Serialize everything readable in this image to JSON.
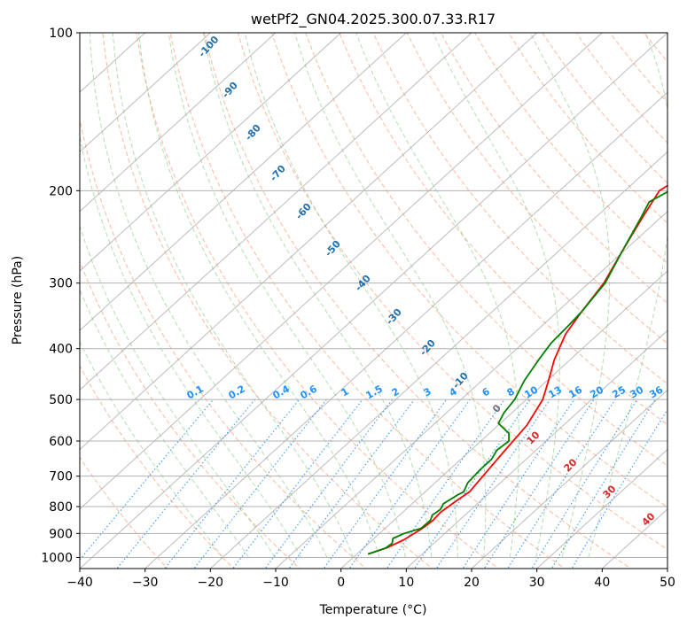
{
  "chart_data": {
    "type": "line",
    "title": "wetPf2_GN04.2025.300.07.33.R17",
    "xlabel": "Temperature (°C)",
    "ylabel": "Pressure (hPa)",
    "xlim": [
      -40,
      50
    ],
    "ylim": [
      1050,
      100
    ],
    "y_scale": "log",
    "x_ticks": [
      "-40",
      "-30",
      "-20",
      "-10",
      "0",
      "10",
      "20",
      "30",
      "40",
      "50"
    ],
    "y_ticks": [
      "100",
      "200",
      "300",
      "400",
      "500",
      "600",
      "700",
      "800",
      "900",
      "1000"
    ],
    "grid": true,
    "colors": {
      "temperature": "#ff0000",
      "dewpoint": "#008000",
      "isotherm": "#a0a0a0",
      "dry_adiabat": "#ffa07a",
      "moist_adiabat": "#7ec87e",
      "mixing_ratio": "#1e90ff",
      "dry_adiabat_label": "#1f6fb0",
      "moist_adiabat_label": "#d62728"
    },
    "series": [
      {
        "name": "Temperature",
        "color": "#ff0000",
        "points": [
          [
            1.7,
            985
          ],
          [
            3.5,
            960
          ],
          [
            4.8,
            925
          ],
          [
            5.7,
            880
          ],
          [
            6.0,
            850
          ],
          [
            5.8,
            820
          ],
          [
            6.3,
            780
          ],
          [
            6.8,
            750
          ],
          [
            6.2,
            700
          ],
          [
            5.6,
            650
          ],
          [
            5.2,
            620
          ],
          [
            4.4,
            560
          ],
          [
            2.5,
            500
          ],
          [
            0.2,
            460
          ],
          [
            -2.4,
            420
          ],
          [
            -5.0,
            375
          ],
          [
            -6.3,
            340
          ],
          [
            -7.7,
            300
          ],
          [
            -10.3,
            260
          ],
          [
            -12.8,
            225
          ],
          [
            -14.7,
            200
          ],
          [
            -13.8,
            190
          ],
          [
            -12.0,
            180
          ],
          [
            -7.5,
            175
          ],
          [
            -2.1,
            155
          ],
          [
            4.3,
            135
          ],
          [
            9.2,
            122
          ],
          [
            16.5,
            108
          ],
          [
            23.5,
            100
          ]
        ]
      },
      {
        "name": "Dewpoint",
        "color": "#008000",
        "points": [
          [
            1.7,
            985
          ],
          [
            3.4,
            960
          ],
          [
            3.6,
            940
          ],
          [
            2.9,
            920
          ],
          [
            3.8,
            900
          ],
          [
            5.5,
            880
          ],
          [
            5.6,
            850
          ],
          [
            5.0,
            830
          ],
          [
            5.3,
            810
          ],
          [
            4.8,
            790
          ],
          [
            5.5,
            760
          ],
          [
            5.9,
            750
          ],
          [
            5.0,
            720
          ],
          [
            4.7,
            680
          ],
          [
            4.7,
            650
          ],
          [
            4.0,
            625
          ],
          [
            4.3,
            600
          ],
          [
            3.0,
            580
          ],
          [
            -0.3,
            555
          ],
          [
            -1.2,
            530
          ],
          [
            -1.8,
            500
          ],
          [
            -3.5,
            460
          ],
          [
            -4.8,
            420
          ],
          [
            -5.7,
            390
          ],
          [
            -6.0,
            360
          ],
          [
            -6.3,
            340
          ],
          [
            -7.5,
            300
          ],
          [
            -10.3,
            260
          ],
          [
            -13.0,
            225
          ],
          [
            -14.4,
            210
          ],
          [
            -12.5,
            195
          ],
          [
            -11.3,
            180
          ],
          [
            -11.0,
            168
          ],
          [
            -11.8,
            150
          ],
          [
            -11.5,
            140
          ],
          [
            -10.0,
            130
          ],
          [
            -6.5,
            118
          ],
          [
            -3.1,
            108
          ],
          [
            -1.0,
            100
          ]
        ]
      }
    ],
    "mixing_ratio_labels": [
      "0.1",
      "0.2",
      "0.4",
      "0.6",
      "1",
      "1.5",
      "2",
      "3",
      "4",
      "6",
      "8",
      "10",
      "13",
      "16",
      "20",
      "25",
      "30",
      "36"
    ],
    "dry_adiabat_labels": [
      "-100",
      "-90",
      "-80",
      "-70",
      "-60",
      "-50",
      "-40",
      "-30",
      "-20",
      "-10"
    ],
    "moist_adiabat_labels": [
      "0",
      "10",
      "20",
      "30",
      "40"
    ]
  }
}
